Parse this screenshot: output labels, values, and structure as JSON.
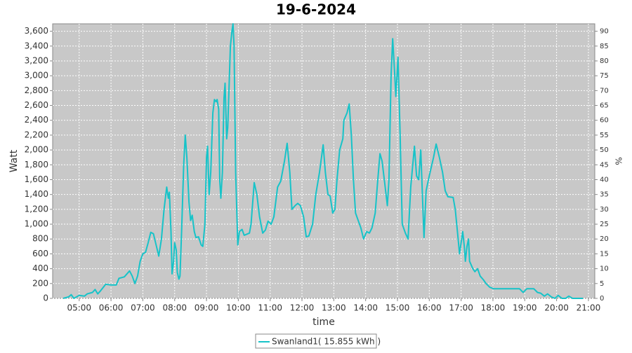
{
  "chart_data": {
    "type": "line",
    "title": "19-6-2024",
    "xlabel": "time",
    "ylabel": "Watt",
    "y2label": "%",
    "grid": true,
    "legend": "bottom",
    "xlim": [
      "04:10",
      "21:12"
    ],
    "xticks": [
      "05:00",
      "06:00",
      "07:00",
      "08:00",
      "09:00",
      "10:00",
      "11:00",
      "12:00",
      "13:00",
      "14:00",
      "15:00",
      "16:00",
      "17:00",
      "18:00",
      "19:00",
      "20:00",
      "21:00"
    ],
    "ylim": [
      0,
      3700
    ],
    "yticks": [
      0,
      200,
      400,
      600,
      800,
      {
        "value": 1000,
        "label": "1,000"
      },
      {
        "value": 1200,
        "label": "1,200"
      },
      {
        "value": 1400,
        "label": "1,400"
      },
      {
        "value": 1600,
        "label": "1,600"
      },
      {
        "value": 1800,
        "label": "1,800"
      },
      {
        "value": 2000,
        "label": "2,000"
      },
      {
        "value": 2200,
        "label": "2,200"
      },
      {
        "value": 2400,
        "label": "2,400"
      },
      {
        "value": 2600,
        "label": "2,600"
      },
      {
        "value": 2800,
        "label": "2,800"
      },
      {
        "value": 3000,
        "label": "3,000"
      },
      {
        "value": 3200,
        "label": "3,200"
      },
      {
        "value": 3400,
        "label": "3,400"
      },
      {
        "value": 3600,
        "label": "3,600"
      }
    ],
    "y2lim": [
      0,
      92.5
    ],
    "y2ticks": [
      0,
      5,
      10,
      15,
      20,
      25,
      30,
      35,
      40,
      45,
      50,
      55,
      60,
      65,
      70,
      75,
      80,
      85,
      90
    ],
    "x": [
      "04:30",
      "04:40",
      "04:45",
      "04:50",
      "05:00",
      "05:10",
      "05:15",
      "05:25",
      "05:30",
      "05:35",
      "05:40",
      "05:50",
      "06:00",
      "06:10",
      "06:15",
      "06:25",
      "06:35",
      "06:40",
      "06:45",
      "06:50",
      "06:55",
      "07:00",
      "07:05",
      "07:10",
      "07:15",
      "07:20",
      "07:25",
      "07:30",
      "07:35",
      "07:40",
      "07:45",
      "07:48",
      "07:50",
      "07:53",
      "07:55",
      "07:58",
      "08:00",
      "08:03",
      "08:05",
      "08:08",
      "08:10",
      "08:13",
      "08:17",
      "08:20",
      "08:23",
      "08:27",
      "08:30",
      "08:33",
      "08:37",
      "08:40",
      "08:45",
      "08:50",
      "08:53",
      "08:57",
      "09:00",
      "09:02",
      "09:05",
      "09:08",
      "09:12",
      "09:15",
      "09:18",
      "09:20",
      "09:23",
      "09:25",
      "09:27",
      "09:30",
      "09:33",
      "09:35",
      "09:38",
      "09:40",
      "09:45",
      "09:48",
      "09:50",
      "09:52",
      "09:55",
      "09:59",
      "10:02",
      "10:07",
      "10:11",
      "10:21",
      "10:24",
      "10:30",
      "10:35",
      "10:40",
      "10:46",
      "10:51",
      "10:56",
      "11:02",
      "11:07",
      "11:14",
      "11:20",
      "11:27",
      "11:32",
      "11:37",
      "11:41",
      "11:47",
      "11:52",
      "11:57",
      "12:03",
      "12:08",
      "12:13",
      "12:20",
      "12:26",
      "12:33",
      "12:40",
      "12:44",
      "12:49",
      "12:53",
      "12:58",
      "13:02",
      "13:06",
      "13:11",
      "13:17",
      "13:19",
      "13:25",
      "13:29",
      "13:33",
      "13:37",
      "13:41",
      "13:46",
      "13:51",
      "13:56",
      "14:02",
      "14:07",
      "14:12",
      "14:18",
      "14:23",
      "14:27",
      "14:31",
      "14:36",
      "14:41",
      "14:44",
      "14:48",
      "14:51",
      "14:55",
      "14:57",
      "15:01",
      "15:05",
      "15:09",
      "15:15",
      "15:20",
      "15:25",
      "15:32",
      "15:36",
      "15:40",
      "15:44",
      "15:48",
      "15:50",
      "15:54",
      "16:00",
      "16:08",
      "16:13",
      "16:19",
      "16:25",
      "16:30",
      "16:35",
      "16:45",
      "16:49",
      "16:53",
      "16:57",
      "17:01",
      "17:03",
      "17:06",
      "17:08",
      "17:11",
      "17:14",
      "17:16",
      "17:19",
      "17:22",
      "17:26",
      "17:31",
      "17:36",
      "17:42",
      "17:47",
      "17:54",
      "18:01",
      "18:50",
      "18:57",
      "19:04",
      "19:17",
      "19:24",
      "19:30",
      "19:37",
      "19:43",
      "19:50",
      "19:57",
      "20:03",
      "20:10",
      "20:17",
      "20:23",
      "20:30",
      "20:50"
    ],
    "series": [
      {
        "name": "Swanland1( 15.855 kWh )",
        "color": "#17c3c8",
        "values": [
          0,
          20,
          50,
          0,
          40,
          30,
          60,
          80,
          120,
          60,
          100,
          190,
          180,
          180,
          270,
          290,
          370,
          300,
          200,
          300,
          500,
          600,
          620,
          750,
          890,
          870,
          720,
          570,
          800,
          1200,
          1500,
          1350,
          1430,
          900,
          330,
          500,
          750,
          650,
          350,
          260,
          300,
          900,
          1800,
          2200,
          1900,
          1300,
          1050,
          1120,
          900,
          820,
          830,
          720,
          700,
          1000,
          1900,
          2050,
          1400,
          1700,
          2500,
          2680,
          2650,
          2680,
          2550,
          1600,
          1350,
          1700,
          2700,
          2900,
          2150,
          2300,
          3400,
          3600,
          3700,
          3400,
          1700,
          720,
          900,
          930,
          850,
          880,
          1000,
          1560,
          1400,
          1100,
          880,
          920,
          1040,
          1000,
          1100,
          1500,
          1580,
          1850,
          2090,
          1700,
          1200,
          1250,
          1280,
          1250,
          1100,
          830,
          840,
          1000,
          1400,
          1700,
          2070,
          1700,
          1400,
          1380,
          1150,
          1200,
          1600,
          2000,
          2150,
          2400,
          2500,
          2620,
          2200,
          1600,
          1150,
          1050,
          950,
          800,
          900,
          880,
          950,
          1150,
          1600,
          1950,
          1850,
          1550,
          1250,
          1600,
          3000,
          3500,
          3000,
          2720,
          3250,
          2200,
          1000,
          880,
          800,
          1500,
          2050,
          1650,
          1600,
          2000,
          1200,
          820,
          1450,
          1650,
          1900,
          2080,
          1900,
          1700,
          1450,
          1370,
          1360,
          1200,
          900,
          600,
          800,
          900,
          700,
          500,
          700,
          800,
          500,
          450,
          400,
          360,
          400,
          300,
          250,
          200,
          150,
          130,
          130,
          80,
          130,
          130,
          80,
          70,
          30,
          60,
          20,
          0,
          40,
          0,
          0,
          30,
          0,
          0
        ]
      }
    ]
  }
}
